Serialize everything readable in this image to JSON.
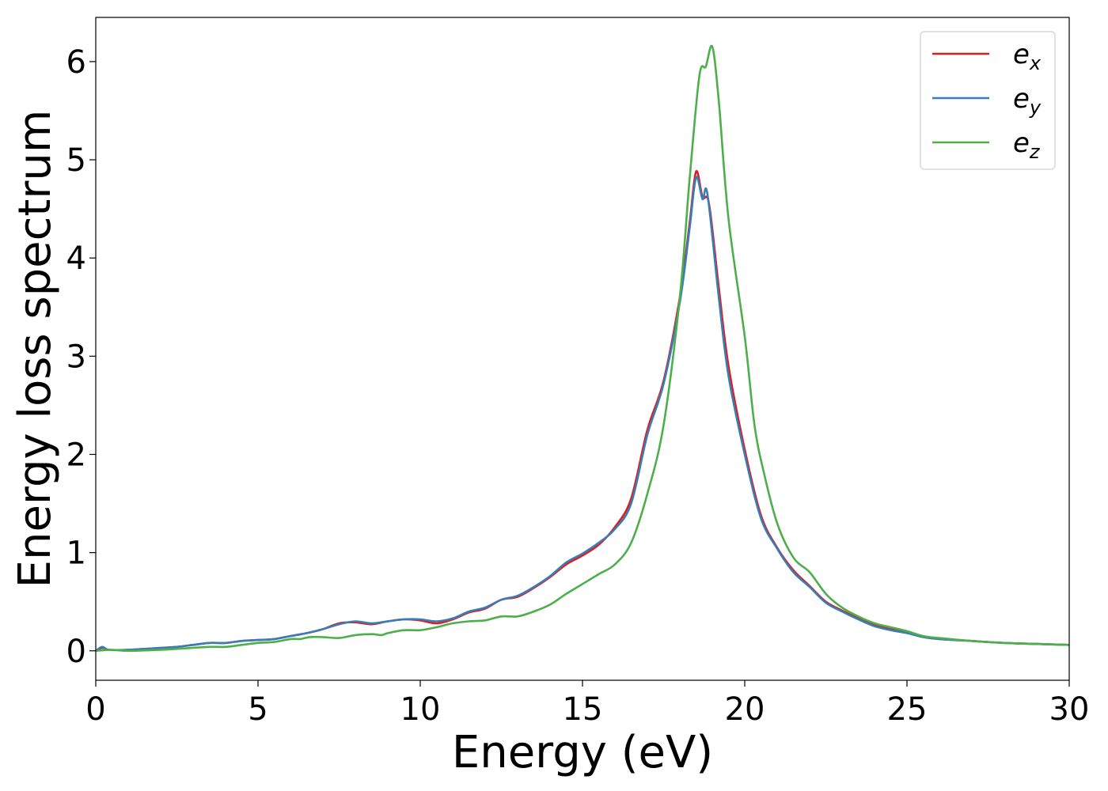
{
  "chart_data": {
    "type": "line",
    "xlabel": "Energy (eV)",
    "ylabel": "Energy loss spectrum",
    "xlim": [
      0,
      30
    ],
    "ylim": [
      -0.3,
      6.45
    ],
    "xticks": [
      "0",
      "5",
      "10",
      "15",
      "20",
      "25",
      "30"
    ],
    "yticks": [
      "0",
      "1",
      "2",
      "3",
      "4",
      "5",
      "6"
    ],
    "grid": false,
    "legend_position": "top-right",
    "series": [
      {
        "name": "e_x",
        "label_main": "e",
        "label_sub": "x",
        "color": "#e41a1c",
        "points": [
          [
            0,
            0
          ],
          [
            0.2,
            0.03
          ],
          [
            0.4,
            0.01
          ],
          [
            1,
            0.01
          ],
          [
            2,
            0.03
          ],
          [
            2.5,
            0.04
          ],
          [
            3,
            0.06
          ],
          [
            3.5,
            0.08
          ],
          [
            4,
            0.08
          ],
          [
            4.5,
            0.1
          ],
          [
            5,
            0.11
          ],
          [
            5.5,
            0.12
          ],
          [
            6,
            0.15
          ],
          [
            6.5,
            0.18
          ],
          [
            7,
            0.22
          ],
          [
            7.5,
            0.28
          ],
          [
            8,
            0.29
          ],
          [
            8.5,
            0.27
          ],
          [
            9,
            0.3
          ],
          [
            9.5,
            0.32
          ],
          [
            10,
            0.31
          ],
          [
            10.5,
            0.28
          ],
          [
            11,
            0.32
          ],
          [
            11.5,
            0.39
          ],
          [
            12,
            0.43
          ],
          [
            12.5,
            0.52
          ],
          [
            13,
            0.55
          ],
          [
            13.5,
            0.64
          ],
          [
            14,
            0.75
          ],
          [
            14.5,
            0.88
          ],
          [
            15,
            0.97
          ],
          [
            15.5,
            1.08
          ],
          [
            16,
            1.26
          ],
          [
            16.5,
            1.55
          ],
          [
            17,
            2.25
          ],
          [
            17.5,
            2.75
          ],
          [
            18,
            3.6
          ],
          [
            18.3,
            4.35
          ],
          [
            18.5,
            4.88
          ],
          [
            18.7,
            4.62
          ],
          [
            18.9,
            4.55
          ],
          [
            19.2,
            3.7
          ],
          [
            19.5,
            2.9
          ],
          [
            20,
            2.05
          ],
          [
            20.5,
            1.38
          ],
          [
            21,
            1.05
          ],
          [
            21.5,
            0.82
          ],
          [
            22,
            0.66
          ],
          [
            22.5,
            0.5
          ],
          [
            23,
            0.41
          ],
          [
            23.5,
            0.33
          ],
          [
            24,
            0.26
          ],
          [
            24.5,
            0.22
          ],
          [
            25,
            0.19
          ],
          [
            25.5,
            0.14
          ],
          [
            26,
            0.12
          ],
          [
            27,
            0.1
          ],
          [
            28,
            0.08
          ],
          [
            29,
            0.07
          ],
          [
            30,
            0.06
          ]
        ]
      },
      {
        "name": "e_y",
        "label_main": "e",
        "label_sub": "y",
        "color": "#377eb8",
        "points": [
          [
            0,
            0
          ],
          [
            0.2,
            0.04
          ],
          [
            0.4,
            0.01
          ],
          [
            1,
            0.01
          ],
          [
            2,
            0.03
          ],
          [
            2.5,
            0.04
          ],
          [
            3,
            0.06
          ],
          [
            3.5,
            0.08
          ],
          [
            4,
            0.08
          ],
          [
            4.5,
            0.1
          ],
          [
            5,
            0.11
          ],
          [
            5.5,
            0.12
          ],
          [
            6,
            0.15
          ],
          [
            6.5,
            0.18
          ],
          [
            7,
            0.22
          ],
          [
            7.5,
            0.27
          ],
          [
            8,
            0.3
          ],
          [
            8.5,
            0.28
          ],
          [
            9,
            0.3
          ],
          [
            9.5,
            0.32
          ],
          [
            10,
            0.32
          ],
          [
            10.5,
            0.3
          ],
          [
            11,
            0.33
          ],
          [
            11.5,
            0.4
          ],
          [
            12,
            0.44
          ],
          [
            12.5,
            0.52
          ],
          [
            13,
            0.56
          ],
          [
            13.5,
            0.65
          ],
          [
            14,
            0.76
          ],
          [
            14.5,
            0.9
          ],
          [
            15,
            0.99
          ],
          [
            15.5,
            1.1
          ],
          [
            16,
            1.24
          ],
          [
            16.5,
            1.5
          ],
          [
            17,
            2.2
          ],
          [
            17.5,
            2.72
          ],
          [
            18,
            3.55
          ],
          [
            18.3,
            4.3
          ],
          [
            18.5,
            4.82
          ],
          [
            18.7,
            4.6
          ],
          [
            18.85,
            4.65
          ],
          [
            19.2,
            3.6
          ],
          [
            19.5,
            2.8
          ],
          [
            20,
            2.0
          ],
          [
            20.5,
            1.35
          ],
          [
            21,
            1.04
          ],
          [
            21.5,
            0.8
          ],
          [
            22,
            0.65
          ],
          [
            22.5,
            0.49
          ],
          [
            23,
            0.4
          ],
          [
            23.5,
            0.32
          ],
          [
            24,
            0.25
          ],
          [
            24.5,
            0.21
          ],
          [
            25,
            0.18
          ],
          [
            25.5,
            0.14
          ],
          [
            26,
            0.12
          ],
          [
            27,
            0.1
          ],
          [
            28,
            0.08
          ],
          [
            29,
            0.07
          ],
          [
            30,
            0.06
          ]
        ]
      },
      {
        "name": "e_z",
        "label_main": "e",
        "label_sub": "z",
        "color": "#4daf4a",
        "points": [
          [
            0,
            0
          ],
          [
            0.5,
            0.01
          ],
          [
            1,
            0.0
          ],
          [
            2,
            0.01
          ],
          [
            2.5,
            0.02
          ],
          [
            3,
            0.03
          ],
          [
            3.5,
            0.04
          ],
          [
            4,
            0.04
          ],
          [
            4.5,
            0.06
          ],
          [
            5,
            0.08
          ],
          [
            5.5,
            0.09
          ],
          [
            6,
            0.12
          ],
          [
            6.3,
            0.12
          ],
          [
            6.6,
            0.14
          ],
          [
            7,
            0.14
          ],
          [
            7.5,
            0.13
          ],
          [
            8,
            0.16
          ],
          [
            8.5,
            0.17
          ],
          [
            8.8,
            0.16
          ],
          [
            9,
            0.18
          ],
          [
            9.5,
            0.21
          ],
          [
            10,
            0.21
          ],
          [
            10.5,
            0.24
          ],
          [
            11,
            0.28
          ],
          [
            11.5,
            0.3
          ],
          [
            12,
            0.31
          ],
          [
            12.5,
            0.35
          ],
          [
            13,
            0.35
          ],
          [
            13.5,
            0.4
          ],
          [
            14,
            0.47
          ],
          [
            14.5,
            0.58
          ],
          [
            15,
            0.68
          ],
          [
            15.5,
            0.78
          ],
          [
            16,
            0.88
          ],
          [
            16.5,
            1.1
          ],
          [
            17,
            1.6
          ],
          [
            17.5,
            2.3
          ],
          [
            18,
            3.6
          ],
          [
            18.3,
            4.8
          ],
          [
            18.6,
            5.85
          ],
          [
            18.8,
            5.95
          ],
          [
            19,
            6.15
          ],
          [
            19.2,
            5.6
          ],
          [
            19.5,
            4.4
          ],
          [
            20,
            3.2
          ],
          [
            20.3,
            2.3
          ],
          [
            20.6,
            1.8
          ],
          [
            21,
            1.3
          ],
          [
            21.5,
            0.95
          ],
          [
            22,
            0.8
          ],
          [
            22.5,
            0.58
          ],
          [
            23,
            0.44
          ],
          [
            23.5,
            0.35
          ],
          [
            24,
            0.28
          ],
          [
            24.5,
            0.24
          ],
          [
            25,
            0.2
          ],
          [
            25.5,
            0.15
          ],
          [
            26,
            0.13
          ],
          [
            27,
            0.1
          ],
          [
            28,
            0.08
          ],
          [
            29,
            0.07
          ],
          [
            30,
            0.06
          ]
        ]
      }
    ]
  }
}
